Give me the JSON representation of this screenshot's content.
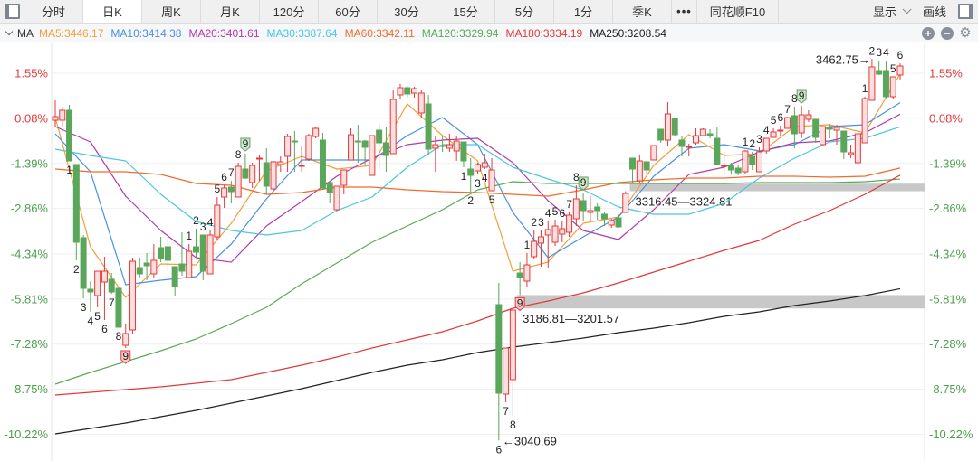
{
  "toolbar": {
    "tabs": [
      {
        "label": "分时",
        "active": false
      },
      {
        "label": "日K",
        "active": true
      },
      {
        "label": "周K",
        "active": false
      },
      {
        "label": "月K",
        "active": false
      },
      {
        "label": "120分",
        "active": false
      },
      {
        "label": "60分",
        "active": false
      },
      {
        "label": "30分",
        "active": false
      },
      {
        "label": "15分",
        "active": false
      },
      {
        "label": "5分",
        "active": false
      },
      {
        "label": "1分",
        "active": false
      },
      {
        "label": "季K",
        "active": false
      }
    ],
    "more_label": "•••",
    "f10_label": "同花顺F10",
    "display_label": "显示",
    "draw_label": "画线"
  },
  "ma_bar": {
    "label": "MA",
    "items": [
      {
        "text": "MA5:3446.17",
        "color": "#f0a03c"
      },
      {
        "text": "MA10:3414.38",
        "color": "#4a90e2"
      },
      {
        "text": "MA20:3401.61",
        "color": "#b23aa8"
      },
      {
        "text": "MA30:3387.64",
        "color": "#4cc6e0"
      },
      {
        "text": "MA60:3342.11",
        "color": "#f26b2a"
      },
      {
        "text": "MA120:3329.94",
        "color": "#5aaa55"
      },
      {
        "text": "MA180:3334.19",
        "color": "#e03b3b"
      },
      {
        "text": "MA250:3208.54",
        "color": "#222222"
      }
    ],
    "zoom_in_icon": "+",
    "zoom_out_icon": "−",
    "settings_icon": "⚙"
  },
  "chart_data": {
    "type": "candlestick",
    "y_unit": "price",
    "ylim": [
      3036,
      3480
    ],
    "grid": true,
    "up_color": "#e5393a",
    "down_color": "#5aa65a",
    "y_ticks_pct": [
      "1.55%",
      "0.08%",
      "-1.39%",
      "-2.86%",
      "-4.34%",
      "-5.81%",
      "-7.28%",
      "-8.75%",
      "-10.22%"
    ],
    "candles_ohlc": [
      [
        3395,
        3417,
        3388,
        3399
      ],
      [
        3395,
        3410,
        3388,
        3406
      ],
      [
        3406,
        3412,
        3350,
        3350
      ],
      [
        3346,
        3346,
        3240,
        3260
      ],
      [
        3265,
        3268,
        3198,
        3209
      ],
      [
        3208,
        3217,
        3183,
        3205
      ],
      [
        3201,
        3228,
        3188,
        3228
      ],
      [
        3216,
        3244,
        3174,
        3228
      ],
      [
        3219,
        3226,
        3203,
        3205
      ],
      [
        3209,
        3209,
        3166,
        3166
      ],
      [
        3146,
        3170,
        3143,
        3159
      ],
      [
        3163,
        3243,
        3158,
        3239
      ],
      [
        3232,
        3243,
        3220,
        3225
      ],
      [
        3237,
        3248,
        3218,
        3234
      ],
      [
        3225,
        3258,
        3220,
        3240
      ],
      [
        3254,
        3266,
        3238,
        3242
      ],
      [
        3255,
        3263,
        3228,
        3240
      ],
      [
        3233,
        3233,
        3201,
        3211
      ],
      [
        3236,
        3271,
        3223,
        3228
      ],
      [
        3221,
        3258,
        3221,
        3250
      ],
      [
        3255,
        3275,
        3243,
        3249
      ],
      [
        3268,
        3268,
        3218,
        3228
      ],
      [
        3225,
        3273,
        3225,
        3268
      ],
      [
        3266,
        3310,
        3263,
        3301
      ],
      [
        3310,
        3323,
        3298,
        3320
      ],
      [
        3321,
        3328,
        3303,
        3316
      ],
      [
        3310,
        3348,
        3310,
        3344
      ],
      [
        3341,
        3358,
        3330,
        3331
      ],
      [
        3326,
        3348,
        3320,
        3345
      ],
      [
        3352,
        3356,
        3328,
        3353
      ],
      [
        3348,
        3364,
        3313,
        3322
      ],
      [
        3319,
        3350,
        3318,
        3349
      ],
      [
        3346,
        3355,
        3338,
        3349
      ],
      [
        3355,
        3380,
        3338,
        3377
      ],
      [
        3372,
        3383,
        3338,
        3371
      ],
      [
        3344,
        3367,
        3338,
        3345
      ],
      [
        3352,
        3380,
        3350,
        3378
      ],
      [
        3377,
        3388,
        3375,
        3386
      ],
      [
        3373,
        3381,
        3318,
        3320
      ],
      [
        3326,
        3326,
        3303,
        3315
      ],
      [
        3296,
        3322,
        3295,
        3322
      ],
      [
        3323,
        3340,
        3313,
        3340
      ],
      [
        3351,
        3386,
        3351,
        3379
      ],
      [
        3372,
        3390,
        3348,
        3371
      ],
      [
        3372,
        3373,
        3345,
        3365
      ],
      [
        3334,
        3378,
        3334,
        3378
      ],
      [
        3384,
        3391,
        3340,
        3370
      ],
      [
        3370,
        3388,
        3338,
        3356
      ],
      [
        3358,
        3428,
        3358,
        3418
      ],
      [
        3423,
        3435,
        3418,
        3431
      ],
      [
        3431,
        3433,
        3420,
        3424
      ],
      [
        3425,
        3432,
        3420,
        3430
      ],
      [
        3403,
        3428,
        3398,
        3425
      ],
      [
        3413,
        3423,
        3356,
        3363
      ],
      [
        3364,
        3378,
        3338,
        3368
      ],
      [
        3367,
        3378,
        3360,
        3366
      ],
      [
        3364,
        3380,
        3360,
        3368
      ],
      [
        3361,
        3378,
        3350,
        3372
      ],
      [
        3371,
        3371,
        3343,
        3350
      ],
      [
        3341,
        3353,
        3316,
        3334
      ],
      [
        3339,
        3348,
        3335,
        3346
      ],
      [
        3343,
        3358,
        3341,
        3348
      ],
      [
        3317,
        3353,
        3317,
        3340
      ],
      [
        3191,
        3215,
        3040.69,
        3093
      ],
      [
        3092,
        3143,
        3083,
        3143
      ],
      [
        3108,
        3186.81,
        3068,
        3185
      ],
      [
        3226,
        3238,
        3201.57,
        3221
      ],
      [
        3217,
        3248,
        3210,
        3235
      ],
      [
        3244,
        3273,
        3241,
        3261
      ],
      [
        3259,
        3273,
        3233,
        3266
      ],
      [
        3268,
        3283,
        3232,
        3274
      ],
      [
        3260,
        3285,
        3256,
        3278
      ],
      [
        3269,
        3283,
        3260,
        3275
      ],
      [
        3271,
        3293,
        3266,
        3290
      ],
      [
        3286,
        3323,
        3278,
        3308
      ],
      [
        3306,
        3315,
        3283,
        3295
      ],
      [
        3293,
        3311,
        3283,
        3295
      ],
      [
        3299,
        3303,
        3285,
        3295
      ],
      [
        3291,
        3294,
        3278,
        3286
      ],
      [
        3279,
        3286,
        3276,
        3284
      ],
      [
        3287,
        3291,
        3276,
        3277
      ],
      [
        3293,
        3316.45,
        3293,
        3314
      ],
      [
        3353,
        3353,
        3324.81,
        3341
      ],
      [
        3328,
        3357,
        3326,
        3350
      ],
      [
        3349,
        3350,
        3335,
        3340
      ],
      [
        3351,
        3367,
        3351,
        3367
      ],
      [
        3385,
        3385,
        3370,
        3373
      ],
      [
        3373,
        3415,
        3367,
        3402
      ],
      [
        3397,
        3398,
        3377,
        3379
      ],
      [
        3373,
        3378,
        3355,
        3366
      ],
      [
        3365,
        3369,
        3355,
        3366
      ],
      [
        3370,
        3386,
        3368,
        3378
      ],
      [
        3378,
        3386,
        3378,
        3385
      ],
      [
        3380,
        3385,
        3375,
        3378
      ],
      [
        3375,
        3387,
        3345,
        3346
      ],
      [
        3344,
        3360,
        3335,
        3345
      ],
      [
        3345,
        3348,
        3335,
        3340
      ],
      [
        3342,
        3345,
        3334,
        3337
      ],
      [
        3338,
        3362,
        3336,
        3361
      ],
      [
        3355,
        3360,
        3340,
        3346
      ],
      [
        3338,
        3365,
        3338,
        3360
      ],
      [
        3361,
        3375,
        3358,
        3375
      ],
      [
        3376,
        3386,
        3376,
        3382
      ],
      [
        3383,
        3389,
        3378,
        3384
      ],
      [
        3386,
        3398,
        3386,
        3398
      ],
      [
        3400,
        3410,
        3364,
        3380
      ],
      [
        3381,
        3411,
        3375,
        3401
      ],
      [
        3396,
        3406,
        3393,
        3401
      ],
      [
        3396,
        3396,
        3370,
        3376
      ],
      [
        3368,
        3388,
        3368,
        3388
      ],
      [
        3387,
        3391,
        3375,
        3385
      ],
      [
        3384,
        3390,
        3368,
        3387
      ],
      [
        3383,
        3383,
        3352,
        3360
      ],
      [
        3357,
        3368,
        3353,
        3359
      ],
      [
        3348,
        3380,
        3346,
        3380
      ],
      [
        3370,
        3421,
        3370,
        3419
      ],
      [
        3417,
        3462.75,
        3417,
        3454
      ],
      [
        3450,
        3461,
        3445,
        3446
      ],
      [
        3450,
        3461,
        3419,
        3421
      ],
      [
        3421,
        3443,
        3419,
        3443
      ],
      [
        3445,
        3458,
        3440,
        3455
      ]
    ],
    "ma_candle_index": [
      0,
      5,
      10,
      15,
      20,
      25,
      30,
      35,
      40,
      45,
      50,
      55,
      60,
      65,
      70,
      75,
      80,
      85,
      90,
      95,
      100,
      105,
      110,
      115,
      120
    ],
    "ma_series": [
      {
        "name": "MA5",
        "color": "#f0a03c",
        "values": [
          3398,
          3255,
          3199,
          3236,
          3235,
          3281,
          3339,
          3355,
          3341,
          3345,
          3413,
          3378,
          3350,
          3228,
          3238,
          3281,
          3288,
          3345,
          3379,
          3356,
          3358,
          3388,
          3390,
          3381,
          3446.17
        ]
      },
      {
        "name": "MA10",
        "color": "#4a90e2",
        "values": [
          3380,
          3338,
          3213,
          3218,
          3222,
          3258,
          3308,
          3351,
          3351,
          3351,
          3378,
          3398,
          3368,
          3293,
          3243,
          3266,
          3288,
          3333,
          3364,
          3368,
          3361,
          3368,
          3388,
          3390,
          3414.38
        ]
      },
      {
        "name": "MA20",
        "color": "#b23aa8",
        "values": [
          3388,
          3371,
          3311,
          3273,
          3243,
          3238,
          3278,
          3305,
          3333,
          3353,
          3368,
          3373,
          3375,
          3348,
          3306,
          3273,
          3263,
          3296,
          3335,
          3343,
          3360,
          3370,
          3372,
          3381,
          3401.61
        ]
      },
      {
        "name": "MA30",
        "color": "#4cc6e0",
        "values": [
          3363,
          3356,
          3350,
          3313,
          3283,
          3273,
          3268,
          3273,
          3295,
          3310,
          3343,
          3368,
          3368,
          3343,
          3330,
          3318,
          3299,
          3291,
          3291,
          3303,
          3331,
          3353,
          3371,
          3375,
          3387.64
        ]
      },
      {
        "name": "MA60",
        "color": "#f26b2a",
        "values": [
          3341,
          3338,
          3338,
          3335,
          3325,
          3323,
          3313,
          3315,
          3321,
          3321,
          3318,
          3316,
          3315,
          3313,
          3311,
          3318,
          3326,
          3329,
          3331,
          3331,
          3333,
          3333,
          3332,
          3333,
          3342.11
        ]
      },
      {
        "name": "MA120",
        "color": "#5aaa55",
        "values": [
          3103,
          3116,
          3128,
          3140,
          3153,
          3170,
          3188,
          3214,
          3237,
          3260,
          3278,
          3296,
          3318,
          3327,
          3325,
          3325,
          3325,
          3325,
          3325,
          3325,
          3326,
          3326,
          3326,
          3327,
          3329.94
        ]
      },
      {
        "name": "MA180",
        "color": "#e03b3b",
        "values": [
          3091,
          3094,
          3097,
          3100,
          3104,
          3108,
          3116,
          3124,
          3133,
          3143,
          3152,
          3161,
          3173,
          3187,
          3195,
          3204,
          3215,
          3227,
          3239,
          3251,
          3262,
          3280,
          3295,
          3313,
          3334.19
        ]
      },
      {
        "name": "MA250",
        "color": "#222222",
        "values": [
          3048,
          3054,
          3060,
          3067,
          3074,
          3082,
          3090,
          3098,
          3107,
          3116,
          3124,
          3130,
          3138,
          3144,
          3149,
          3154,
          3160,
          3165,
          3171,
          3178,
          3183,
          3190,
          3195,
          3201,
          3208.54
        ]
      }
    ],
    "sequence_labels": [
      {
        "candle": 2,
        "text": "1",
        "pos": "below"
      },
      {
        "candle": 3,
        "text": "2",
        "pos": "below"
      },
      {
        "candle": 4,
        "text": "3",
        "pos": "below"
      },
      {
        "candle": 5,
        "text": "4",
        "pos": "below"
      },
      {
        "candle": 6,
        "text": "5",
        "pos": "below"
      },
      {
        "candle": 7,
        "text": "6",
        "pos": "below"
      },
      {
        "candle": 8,
        "text": "7",
        "pos": "below"
      },
      {
        "candle": 9,
        "text": "8",
        "pos": "below"
      },
      {
        "candle": 10,
        "text": "9",
        "pos": "below",
        "badge": "red"
      },
      {
        "candle": 19,
        "text": "1",
        "pos": "above"
      },
      {
        "candle": 20,
        "text": "2",
        "pos": "above"
      },
      {
        "candle": 21,
        "text": "3",
        "pos": "above"
      },
      {
        "candle": 22,
        "text": "4",
        "pos": "above"
      },
      {
        "candle": 23,
        "text": "5",
        "pos": "above"
      },
      {
        "candle": 24,
        "text": "6",
        "pos": "above"
      },
      {
        "candle": 25,
        "text": "7",
        "pos": "above"
      },
      {
        "candle": 26,
        "text": "8",
        "pos": "above"
      },
      {
        "candle": 27,
        "text": "9",
        "pos": "above",
        "badge": "green"
      },
      {
        "candle": 58,
        "text": "1",
        "pos": "below"
      },
      {
        "candle": 59,
        "text": "2",
        "pos": "below"
      },
      {
        "candle": 60,
        "text": "3",
        "pos": "below"
      },
      {
        "candle": 61,
        "text": "4",
        "pos": "below"
      },
      {
        "candle": 62,
        "text": "5",
        "pos": "below"
      },
      {
        "candle": 63,
        "text": "6",
        "pos": "below"
      },
      {
        "candle": 64,
        "text": "7",
        "pos": "below"
      },
      {
        "candle": 65,
        "text": "8",
        "pos": "below"
      },
      {
        "candle": 66,
        "text": "9",
        "pos": "below",
        "badge": "red"
      },
      {
        "candle": 67,
        "text": "1",
        "pos": "above"
      },
      {
        "candle": 68,
        "text": "2",
        "pos": "above"
      },
      {
        "candle": 69,
        "text": "3",
        "pos": "above"
      },
      {
        "candle": 70,
        "text": "4",
        "pos": "above"
      },
      {
        "candle": 71,
        "text": "5",
        "pos": "above"
      },
      {
        "candle": 72,
        "text": "6",
        "pos": "above"
      },
      {
        "candle": 73,
        "text": "7",
        "pos": "above"
      },
      {
        "candle": 74,
        "text": "8",
        "pos": "above"
      },
      {
        "candle": 75,
        "text": "9",
        "pos": "above",
        "badge": "green"
      },
      {
        "candle": 98,
        "text": "1",
        "pos": "above"
      },
      {
        "candle": 99,
        "text": "2",
        "pos": "above"
      },
      {
        "candle": 100,
        "text": "3",
        "pos": "above"
      },
      {
        "candle": 101,
        "text": "4",
        "pos": "above"
      },
      {
        "candle": 102,
        "text": "5",
        "pos": "above"
      },
      {
        "candle": 103,
        "text": "6",
        "pos": "above"
      },
      {
        "candle": 104,
        "text": "7",
        "pos": "above"
      },
      {
        "candle": 105,
        "text": "8",
        "pos": "above"
      },
      {
        "candle": 106,
        "text": "9",
        "pos": "above",
        "badge": "green"
      },
      {
        "candle": 115,
        "text": "1",
        "pos": "above"
      },
      {
        "candle": 116,
        "text": "2",
        "pos": "above"
      },
      {
        "candle": 117,
        "text": "3",
        "pos": "above"
      },
      {
        "candle": 118,
        "text": "4",
        "pos": "above"
      },
      {
        "candle": 119,
        "text": "5",
        "pos": "above"
      },
      {
        "candle": 120,
        "text": "6",
        "pos": "above"
      }
    ],
    "gap_zones": [
      {
        "low": 3186.81,
        "high": 3201.57,
        "from_candle": 66,
        "label": "3186.81—3201.57"
      },
      {
        "low": 3316.45,
        "high": 3324.81,
        "from_candle": 82,
        "label": "3316.45—3324.81"
      }
    ],
    "extremes": [
      {
        "candle": 116,
        "value": 3462.75,
        "label": "3462.75→",
        "side": "left"
      },
      {
        "candle": 63,
        "value": 3040.69,
        "label": "←3040.69",
        "side": "right"
      }
    ]
  }
}
